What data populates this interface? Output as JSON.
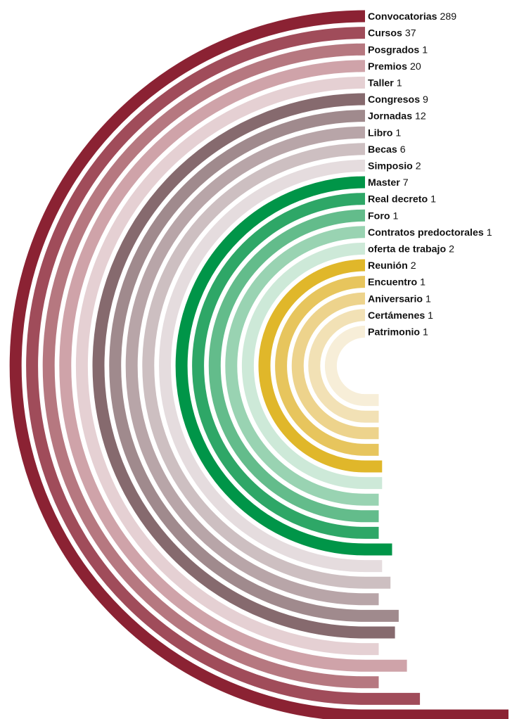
{
  "chart_data": {
    "type": "radial-bar",
    "title": "",
    "series": [
      {
        "label": "Convocatorias",
        "value": 289,
        "color": "#8b2233"
      },
      {
        "label": "Cursos",
        "value": 37,
        "color": "#a04c5a"
      },
      {
        "label": "Posgrados",
        "value": 1,
        "color": "#b67880"
      },
      {
        "label": "Premios",
        "value": 20,
        "color": "#cfa3a9"
      },
      {
        "label": "Taller",
        "value": 1,
        "color": "#e5d0d3"
      },
      {
        "label": "Congresos",
        "value": 9,
        "color": "#866a6e"
      },
      {
        "label": "Jornadas",
        "value": 12,
        "color": "#a08a8d"
      },
      {
        "label": "Libro",
        "value": 1,
        "color": "#b8a5a8"
      },
      {
        "label": "Becas",
        "value": 6,
        "color": "#cdbfc1"
      },
      {
        "label": "Simposio",
        "value": 2,
        "color": "#e5dcde"
      },
      {
        "label": "Master",
        "value": 7,
        "color": "#009548"
      },
      {
        "label": "Real decreto",
        "value": 1,
        "color": "#2ea767"
      },
      {
        "label": "Foro",
        "value": 1,
        "color": "#63bc8b"
      },
      {
        "label": "Contratos predoctorales",
        "value": 1,
        "color": "#99d3b2"
      },
      {
        "label": "oferta de trabajo",
        "value": 2,
        "color": "#cde9d8"
      },
      {
        "label": "Reunión",
        "value": 2,
        "color": "#e0b72a"
      },
      {
        "label": "Encuentro",
        "value": 1,
        "color": "#e7c55d"
      },
      {
        "label": "Aniversario",
        "value": 1,
        "color": "#edd38c"
      },
      {
        "label": "Certámenes",
        "value": 1,
        "color": "#f2e1b5"
      },
      {
        "label": "Patrimonio",
        "value": 1,
        "color": "#f7eed8"
      }
    ]
  }
}
